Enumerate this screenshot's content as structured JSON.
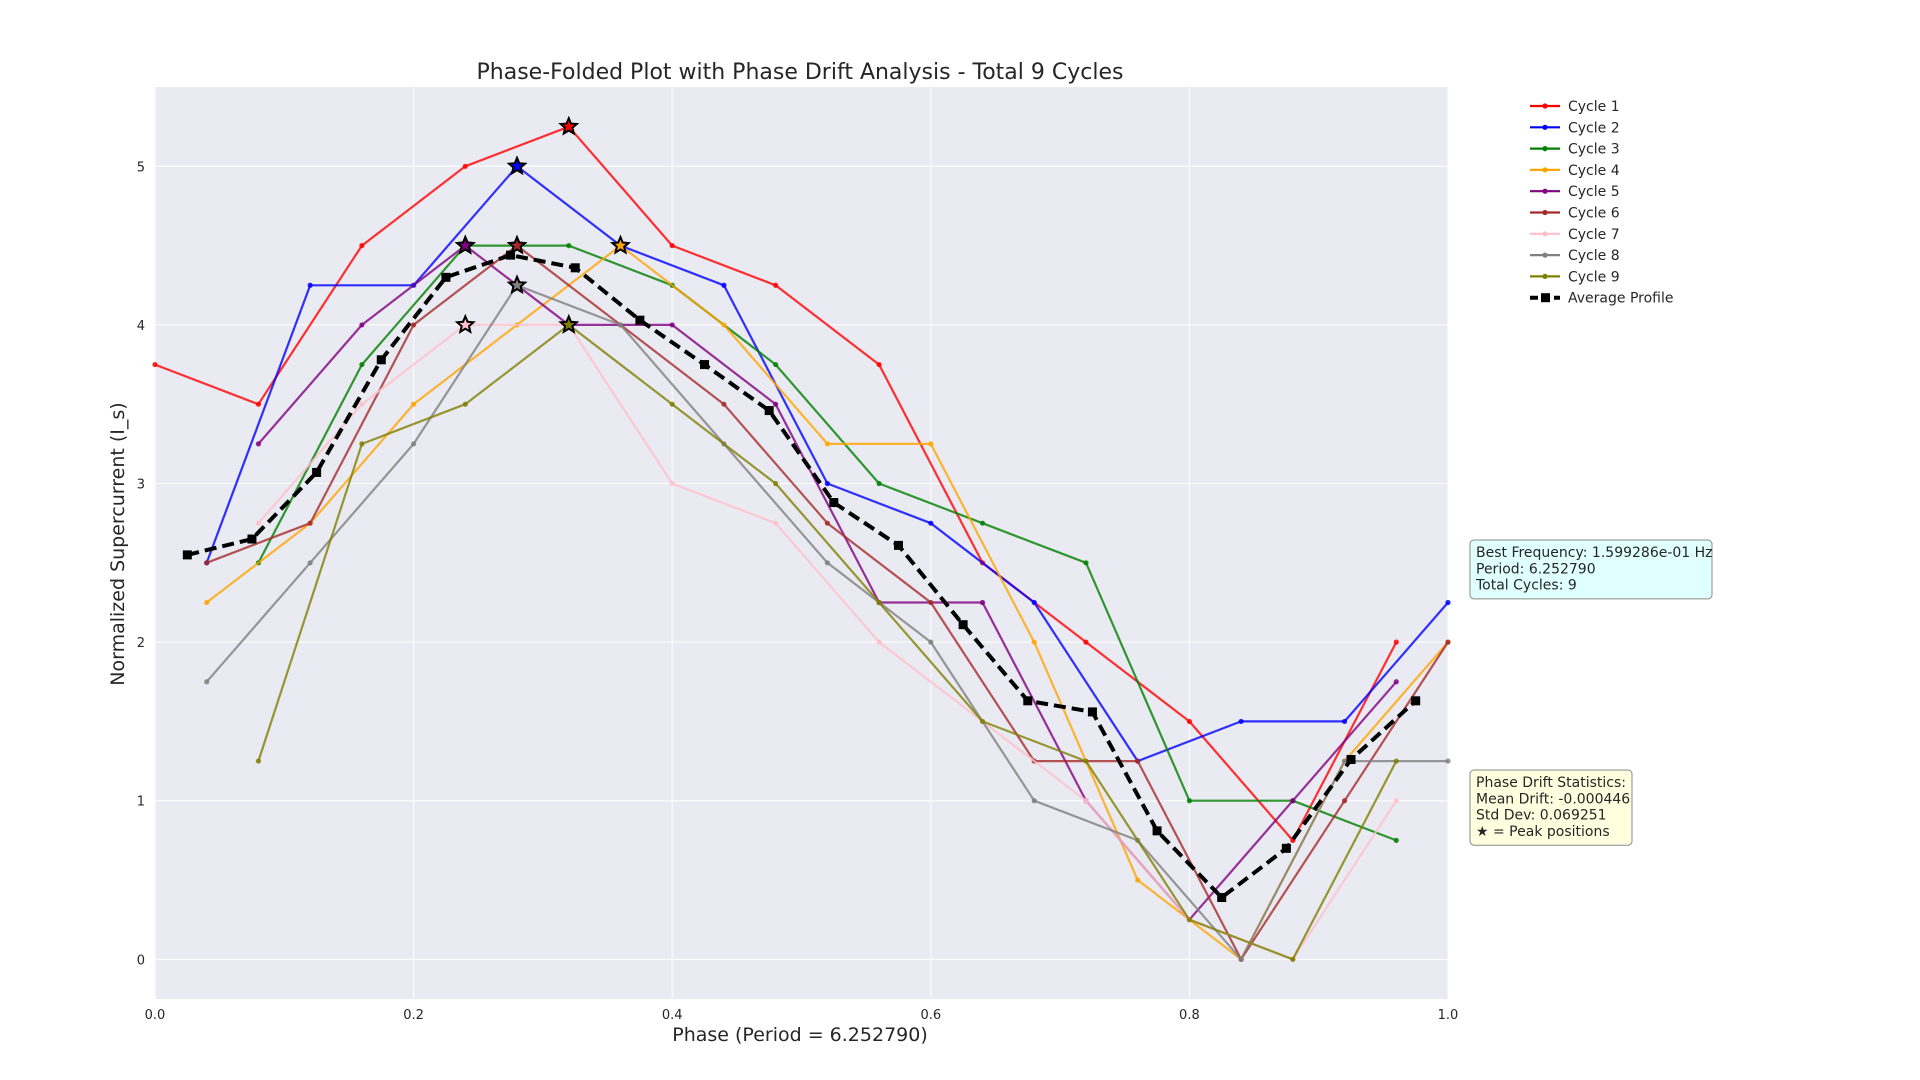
{
  "chart_data": {
    "type": "line",
    "title": "Phase-Folded Plot with Phase Drift Analysis - Total 9 Cycles",
    "xlabel": "Phase (Period = 6.252790)",
    "ylabel": "Normalized Supercurrent (I_s)",
    "xlim": [
      0.0,
      1.0
    ],
    "ylim": [
      -0.25,
      5.5
    ],
    "xticks": [
      0.0,
      0.2,
      0.4,
      0.6,
      0.8,
      1.0
    ],
    "xtick_labels": [
      "0.0",
      "0.2",
      "0.4",
      "0.6",
      "0.8",
      "1.0"
    ],
    "yticks": [
      0,
      1,
      2,
      3,
      4,
      5
    ],
    "ytick_labels": [
      "0",
      "1",
      "2",
      "3",
      "4",
      "5"
    ],
    "grid": true,
    "legend_position": "outside-top-right",
    "series": [
      {
        "name": "Cycle 1",
        "color": "#ff0000",
        "x": [
          0.0,
          0.08,
          0.16,
          0.24,
          0.32,
          0.4,
          0.48,
          0.56,
          0.64,
          0.72,
          0.8,
          0.88,
          0.96
        ],
        "y": [
          3.75,
          3.5,
          4.5,
          5.0,
          5.25,
          4.5,
          4.25,
          3.75,
          2.5,
          2.0,
          1.5,
          0.75,
          2.0
        ],
        "peak": [
          0.32,
          5.25
        ]
      },
      {
        "name": "Cycle 2",
        "color": "#0000ff",
        "x": [
          0.04,
          0.12,
          0.2,
          0.28,
          0.36,
          0.44,
          0.52,
          0.6,
          0.68,
          0.76,
          0.84,
          0.92,
          1.0
        ],
        "y": [
          2.5,
          4.25,
          4.25,
          5.0,
          4.5,
          4.25,
          3.0,
          2.75,
          2.25,
          1.25,
          1.5,
          1.5,
          2.25
        ],
        "peak": [
          0.28,
          5.0
        ]
      },
      {
        "name": "Cycle 3",
        "color": "#008000",
        "x": [
          0.08,
          0.16,
          0.24,
          0.32,
          0.4,
          0.48,
          0.56,
          0.64,
          0.72,
          0.8,
          0.88,
          0.96
        ],
        "y": [
          2.5,
          3.75,
          4.5,
          4.5,
          4.25,
          3.75,
          3.0,
          2.75,
          2.5,
          1.0,
          1.0,
          0.75
        ],
        "peak": [
          0.24,
          4.5
        ]
      },
      {
        "name": "Cycle 4",
        "color": "#ffa500",
        "x": [
          0.04,
          0.12,
          0.2,
          0.28,
          0.36,
          0.44,
          0.52,
          0.6,
          0.68,
          0.76,
          0.84,
          0.92,
          1.0
        ],
        "y": [
          2.25,
          2.75,
          3.5,
          4.0,
          4.5,
          4.0,
          3.25,
          3.25,
          2.0,
          0.5,
          0.0,
          1.25,
          2.0
        ],
        "peak": [
          0.36,
          4.5
        ]
      },
      {
        "name": "Cycle 5",
        "color": "#800080",
        "x": [
          0.08,
          0.16,
          0.24,
          0.32,
          0.4,
          0.48,
          0.56,
          0.64,
          0.72,
          0.8,
          0.88,
          0.96
        ],
        "y": [
          3.25,
          4.0,
          4.5,
          4.0,
          4.0,
          3.5,
          2.25,
          2.25,
          1.0,
          0.25,
          1.0,
          1.75
        ],
        "peak": [
          0.24,
          4.5
        ]
      },
      {
        "name": "Cycle 6",
        "color": "#a52a2a",
        "x": [
          0.04,
          0.12,
          0.2,
          0.28,
          0.36,
          0.44,
          0.52,
          0.6,
          0.68,
          0.76,
          0.84,
          0.92,
          1.0
        ],
        "y": [
          2.5,
          2.75,
          4.0,
          4.5,
          4.0,
          3.5,
          2.75,
          2.25,
          1.25,
          1.25,
          0.0,
          1.0,
          2.0
        ],
        "peak": [
          0.28,
          4.5
        ]
      },
      {
        "name": "Cycle 7",
        "color": "#ffc0cb",
        "x": [
          0.08,
          0.16,
          0.24,
          0.32,
          0.4,
          0.48,
          0.56,
          0.64,
          0.72,
          0.8,
          0.88,
          0.96
        ],
        "y": [
          2.75,
          3.5,
          4.0,
          4.0,
          3.0,
          2.75,
          2.0,
          1.5,
          1.0,
          0.25,
          0.0,
          1.0
        ],
        "peak": [
          0.24,
          4.0
        ]
      },
      {
        "name": "Cycle 8",
        "color": "#808080",
        "x": [
          0.04,
          0.12,
          0.2,
          0.28,
          0.36,
          0.44,
          0.52,
          0.6,
          0.68,
          0.76,
          0.84,
          0.92,
          1.0
        ],
        "y": [
          1.75,
          2.5,
          3.25,
          4.25,
          4.0,
          3.25,
          2.5,
          2.0,
          1.0,
          0.75,
          0.0,
          1.25,
          1.25
        ],
        "peak": [
          0.28,
          4.25
        ]
      },
      {
        "name": "Cycle 9",
        "color": "#808000",
        "x": [
          0.08,
          0.16,
          0.24,
          0.32,
          0.4,
          0.48,
          0.56,
          0.64,
          0.72,
          0.8,
          0.88,
          0.96
        ],
        "y": [
          1.25,
          3.25,
          3.5,
          4.0,
          3.5,
          3.0,
          2.25,
          1.5,
          1.25,
          0.25,
          0.0,
          1.25
        ],
        "peak": [
          0.32,
          4.0
        ]
      }
    ],
    "average": {
      "name": "Average Profile",
      "color": "#000000",
      "x": [
        0.025,
        0.075,
        0.125,
        0.175,
        0.225,
        0.275,
        0.325,
        0.375,
        0.425,
        0.475,
        0.525,
        0.575,
        0.625,
        0.675,
        0.725,
        0.775,
        0.825,
        0.875,
        0.925,
        0.975
      ],
      "y": [
        2.55,
        2.65,
        3.07,
        3.78,
        4.3,
        4.44,
        4.36,
        4.03,
        3.75,
        3.46,
        2.88,
        2.61,
        2.11,
        1.63,
        1.56,
        0.81,
        0.39,
        0.7,
        1.26,
        1.63
      ]
    },
    "info_box": {
      "lines": [
        "Best Frequency: 1.599286e-01 Hz",
        "Period: 6.252790",
        "Total Cycles: 9"
      ],
      "bg": "#e0ffff"
    },
    "stats_box": {
      "lines": [
        "Phase Drift Statistics:",
        "Mean Drift: -0.000446",
        "Std Dev: 0.069251",
        "★ = Peak positions"
      ],
      "bg": "#ffffe0"
    },
    "plot_bg": "#eaeaf2"
  }
}
